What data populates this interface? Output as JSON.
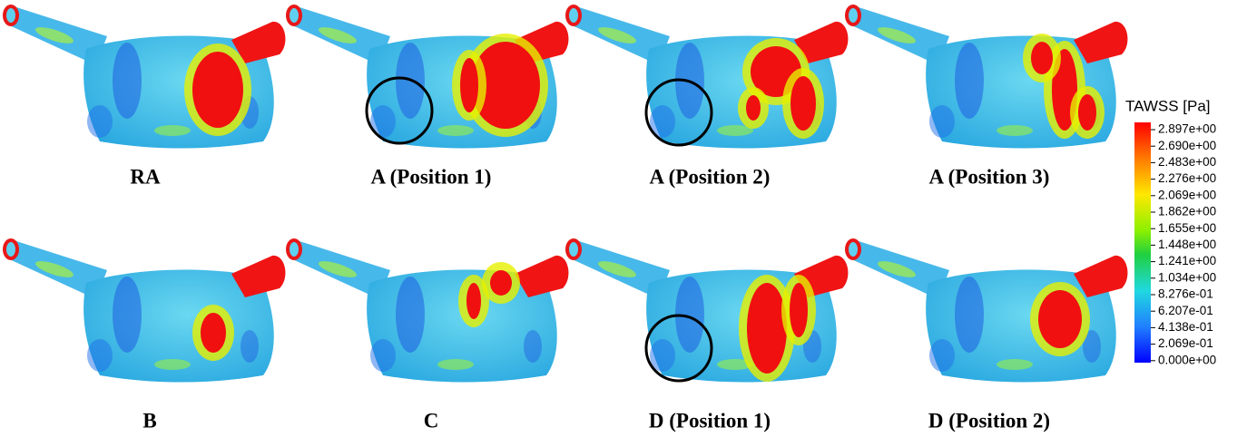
{
  "panels": [
    {
      "label": "RA"
    },
    {
      "label": "A (Position 1)"
    },
    {
      "label": "A (Position 2)"
    },
    {
      "label": "A (Position 3)"
    },
    {
      "label": "B"
    },
    {
      "label": "C"
    },
    {
      "label": "D (Position 1)"
    },
    {
      "label": "D (Position 2)"
    }
  ],
  "colorbar": {
    "title": "TAWSS [Pa]",
    "ticks": [
      "2.897e+00",
      "2.690e+00",
      "2.483e+00",
      "2.276e+00",
      "2.069e+00",
      "1.862e+00",
      "1.655e+00",
      "1.448e+00",
      "1.241e+00",
      "1.034e+00",
      "8.276e-01",
      "6.207e-01",
      "4.138e-01",
      "2.069e-01",
      "0.000e+00"
    ]
  }
}
